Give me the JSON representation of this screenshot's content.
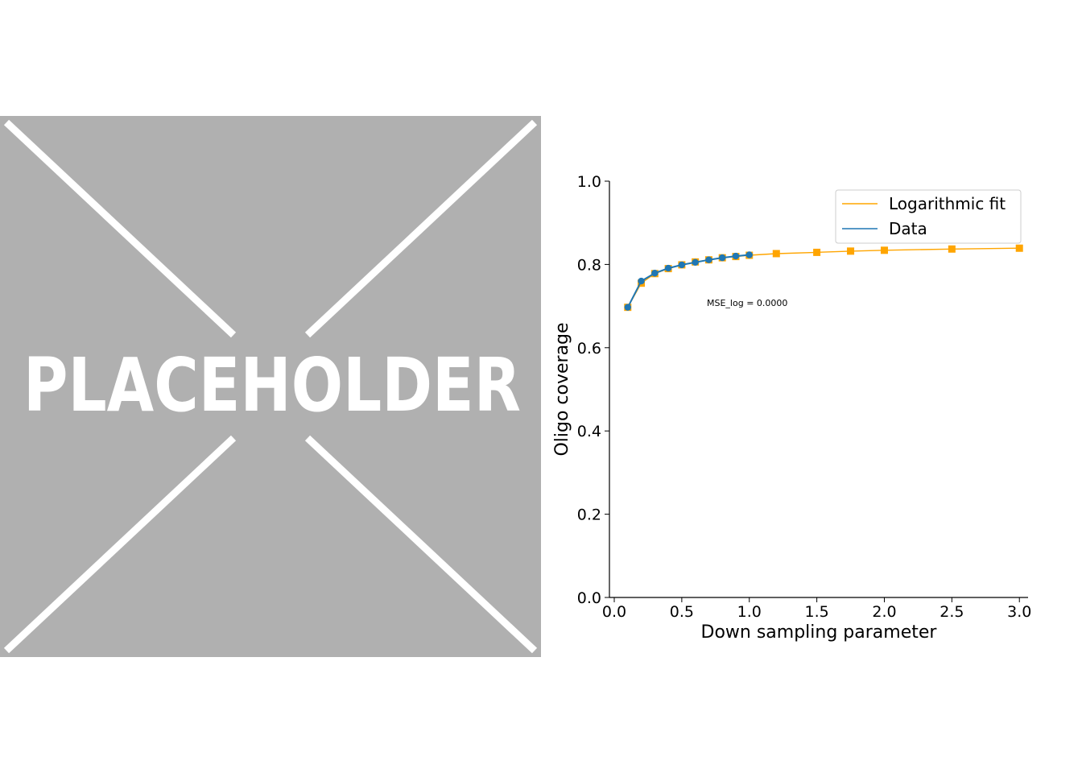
{
  "placeholder": {
    "label": "PLACEHOLDER",
    "background": "#b0b0b0",
    "foreground": "#ffffff"
  },
  "chart_data": {
    "type": "line",
    "title": "",
    "xlabel": "Down sampling parameter",
    "ylabel": "Oligo coverage",
    "xlim": [
      0.0,
      3.1
    ],
    "ylim": [
      0.0,
      1.0
    ],
    "xticks": [
      0.0,
      0.5,
      1.0,
      1.5,
      2.0,
      2.5,
      3.0
    ],
    "xtick_labels": [
      "0.0",
      "0.5",
      "1.0",
      "1.5",
      "2.0",
      "2.5",
      "3.0"
    ],
    "yticks": [
      0.0,
      0.2,
      0.4,
      0.6,
      0.8,
      1.0
    ],
    "ytick_labels": [
      "0.0",
      "0.2",
      "0.4",
      "0.6",
      "0.8",
      "1.0"
    ],
    "grid": false,
    "legend_position": "top-right",
    "annotation": "MSE_log = 0.0000",
    "series": [
      {
        "name": "Logarithmic fit",
        "color": "#ffa500",
        "marker": "square",
        "x": [
          0.1,
          0.2,
          0.3,
          0.4,
          0.5,
          0.6,
          0.7,
          0.8,
          0.9,
          1.0,
          1.2,
          1.5,
          1.75,
          2.0,
          2.5,
          3.0
        ],
        "y": [
          0.697,
          0.755,
          0.778,
          0.79,
          0.799,
          0.806,
          0.811,
          0.816,
          0.819,
          0.822,
          0.826,
          0.829,
          0.832,
          0.834,
          0.837,
          0.839
        ]
      },
      {
        "name": "Data",
        "color": "#1f77b4",
        "marker": "circle",
        "x": [
          0.1,
          0.2,
          0.3,
          0.4,
          0.5,
          0.6,
          0.7,
          0.8,
          0.9,
          1.0
        ],
        "y": [
          0.697,
          0.76,
          0.779,
          0.791,
          0.799,
          0.805,
          0.811,
          0.816,
          0.82,
          0.823
        ]
      }
    ]
  }
}
